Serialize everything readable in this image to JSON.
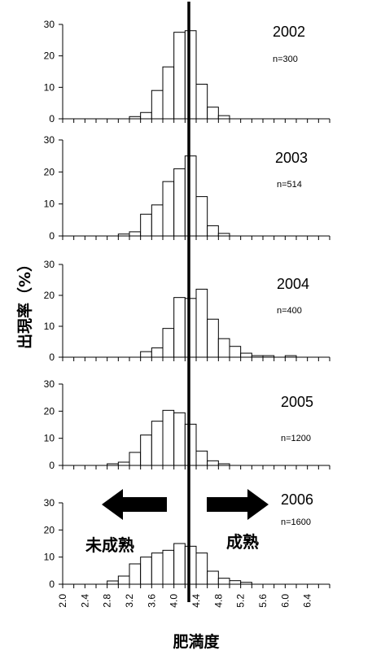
{
  "axis_labels": {
    "y": "出現率（%）",
    "x": "肥満度"
  },
  "annotations": {
    "left_arrow_label": "未成熟",
    "right_arrow_label": "成熟"
  },
  "chart_data": [
    {
      "type": "bar",
      "year": "2002",
      "n_label": "n=300",
      "ylim": [
        0,
        30
      ],
      "yticks": [
        "0",
        "10",
        "20",
        "30"
      ],
      "x": [
        2.0,
        2.2,
        2.4,
        2.6,
        2.8,
        3.0,
        3.2,
        3.4,
        3.6,
        3.8,
        4.0,
        4.2,
        4.4,
        4.6,
        4.8,
        5.0,
        5.2,
        5.4,
        5.6,
        5.8,
        6.0,
        6.2,
        6.4,
        6.6
      ],
      "values": [
        0,
        0,
        0,
        0,
        0,
        0,
        0.7,
        2,
        9,
        16.5,
        27.5,
        28,
        11,
        3.7,
        1,
        0,
        0,
        0,
        0,
        0,
        0,
        0,
        0,
        0
      ]
    },
    {
      "type": "bar",
      "year": "2003",
      "n_label": "n=514",
      "ylim": [
        0,
        30
      ],
      "yticks": [
        "0",
        "10",
        "20",
        "30"
      ],
      "x": [
        2.0,
        2.2,
        2.4,
        2.6,
        2.8,
        3.0,
        3.2,
        3.4,
        3.6,
        3.8,
        4.0,
        4.2,
        4.4,
        4.6,
        4.8,
        5.0,
        5.2,
        5.4,
        5.6,
        5.8,
        6.0,
        6.2,
        6.4,
        6.6
      ],
      "values": [
        0,
        0,
        0,
        0,
        0,
        0.6,
        1.3,
        6.8,
        9.7,
        17,
        21,
        25,
        12.3,
        3.2,
        0.8,
        0,
        0,
        0,
        0,
        0,
        0,
        0,
        0,
        0
      ]
    },
    {
      "type": "bar",
      "year": "2004",
      "n_label": "n=400",
      "ylim": [
        0,
        30
      ],
      "yticks": [
        "0",
        "10",
        "20",
        "30"
      ],
      "x": [
        2.0,
        2.2,
        2.4,
        2.6,
        2.8,
        3.0,
        3.2,
        3.4,
        3.6,
        3.8,
        4.0,
        4.2,
        4.4,
        4.6,
        4.8,
        5.0,
        5.2,
        5.4,
        5.6,
        5.8,
        6.0,
        6.2,
        6.4,
        6.6
      ],
      "values": [
        0,
        0,
        0,
        0,
        0,
        0,
        0,
        1.8,
        3,
        9.3,
        19.3,
        19,
        22,
        12.3,
        6,
        3.5,
        1.3,
        0.5,
        0.5,
        0,
        0.5,
        0,
        0,
        0
      ]
    },
    {
      "type": "bar",
      "year": "2005",
      "n_label": "n=1200",
      "ylim": [
        0,
        30
      ],
      "yticks": [
        "0",
        "10",
        "20",
        "30"
      ],
      "x": [
        2.0,
        2.2,
        2.4,
        2.6,
        2.8,
        3.0,
        3.2,
        3.4,
        3.6,
        3.8,
        4.0,
        4.2,
        4.4,
        4.6,
        4.8,
        5.0,
        5.2,
        5.4,
        5.6,
        5.8,
        6.0,
        6.2,
        6.4,
        6.6
      ],
      "values": [
        0,
        0,
        0,
        0,
        0.6,
        1.2,
        4.8,
        11.2,
        16.3,
        20.3,
        19.4,
        15.2,
        5.3,
        1.7,
        0.6,
        0,
        0,
        0,
        0,
        0,
        0,
        0,
        0,
        0
      ]
    },
    {
      "type": "bar",
      "year": "2006",
      "n_label": "n=1600",
      "ylim": [
        0,
        30
      ],
      "yticks": [
        "0",
        "10",
        "20",
        "30"
      ],
      "x": [
        2.0,
        2.2,
        2.4,
        2.6,
        2.8,
        3.0,
        3.2,
        3.4,
        3.6,
        3.8,
        4.0,
        4.2,
        4.4,
        4.6,
        4.8,
        5.0,
        5.2,
        5.4,
        5.6,
        5.8,
        6.0,
        6.2,
        6.4,
        6.6
      ],
      "values": [
        0,
        0,
        0,
        0,
        1.2,
        3,
        7.5,
        10,
        11.5,
        12.5,
        15,
        14,
        11.5,
        4.8,
        2.2,
        1.3,
        0.7,
        0,
        0,
        0,
        0,
        0,
        0,
        0
      ],
      "x_tick_labels": [
        "2.0",
        "2.4",
        "2.8",
        "3.2",
        "3.6",
        "4.0",
        "4.4",
        "4.8",
        "5.2",
        "5.6",
        "6.0",
        "6.4"
      ]
    }
  ]
}
